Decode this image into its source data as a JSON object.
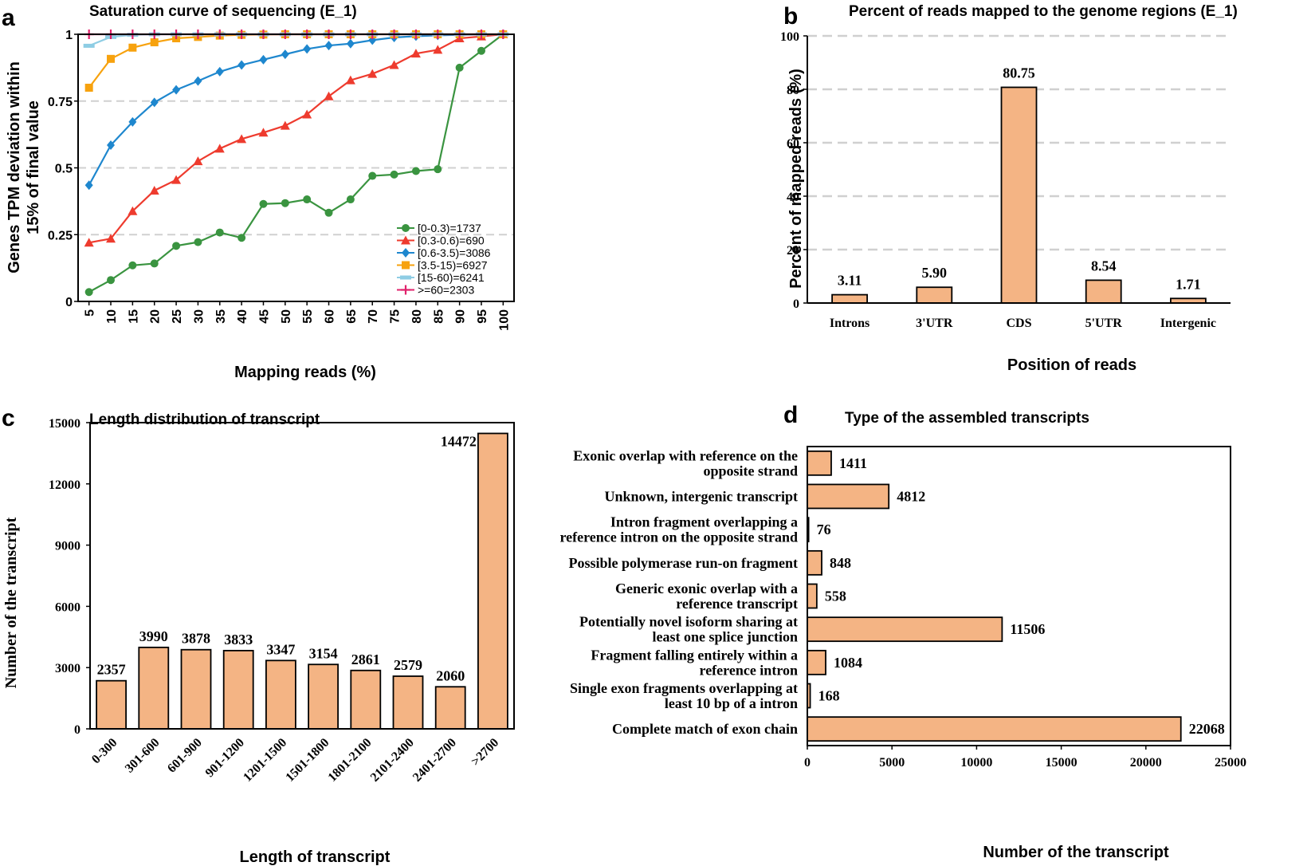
{
  "colors": {
    "bar_fill": "#F4B484",
    "grid": "#D0D0D0",
    "axis": "#000000"
  },
  "chart_data": [
    {
      "panel": "a",
      "type": "line",
      "title": "Saturation curve of sequencing (E_1)",
      "xlabel": "Mapping reads (%)",
      "ylabel": [
        "Genes TPM deviation within",
        "15% of final value"
      ],
      "x": [
        5,
        10,
        15,
        20,
        25,
        30,
        35,
        40,
        45,
        50,
        55,
        60,
        65,
        70,
        75,
        80,
        85,
        90,
        95,
        100
      ],
      "xticks": [
        "5",
        "10",
        "15",
        "20",
        "25",
        "30",
        "35",
        "40",
        "45",
        "50",
        "55",
        "60",
        "65",
        "70",
        "75",
        "80",
        "85",
        "90",
        "95",
        "100"
      ],
      "ylim": [
        0,
        1
      ],
      "yticks": [
        {
          "value": 0,
          "label": "0"
        },
        {
          "value": 0.25,
          "label": "0.25"
        },
        {
          "value": 0.5,
          "label": "0.5"
        },
        {
          "value": 0.75,
          "label": "0.75"
        },
        {
          "value": 1,
          "label": "1"
        }
      ],
      "legend_position": "bottom-right",
      "series": [
        {
          "name": "[0-0.3)=1737",
          "color": "#3A9440",
          "marker": "circle",
          "values": [
            0.035,
            0.08,
            0.135,
            0.142,
            0.208,
            0.222,
            0.258,
            0.238,
            0.365,
            0.368,
            0.382,
            0.332,
            0.382,
            0.47,
            0.475,
            0.488,
            0.495,
            0.875,
            0.938,
            1.0
          ]
        },
        {
          "name": "[0.3-0.6)=690",
          "color": "#EE3B2E",
          "marker": "triangle",
          "values": [
            0.22,
            0.235,
            0.338,
            0.415,
            0.455,
            0.525,
            0.572,
            0.608,
            0.632,
            0.658,
            0.7,
            0.768,
            0.828,
            0.852,
            0.885,
            0.928,
            0.942,
            0.985,
            0.992,
            1.0
          ]
        },
        {
          "name": "[0.6-3.5)=3086",
          "color": "#1E87CE",
          "marker": "diamond",
          "values": [
            0.435,
            0.585,
            0.672,
            0.745,
            0.792,
            0.825,
            0.86,
            0.885,
            0.905,
            0.925,
            0.945,
            0.958,
            0.965,
            0.978,
            0.988,
            0.993,
            0.996,
            0.998,
            0.999,
            1.0
          ]
        },
        {
          "name": "[3.5-15)=6927",
          "color": "#F7A20E",
          "marker": "square",
          "values": [
            0.8,
            0.908,
            0.95,
            0.97,
            0.985,
            0.99,
            0.995,
            0.998,
            0.999,
            1.0,
            1.0,
            1.0,
            1.0,
            1.0,
            1.0,
            1.0,
            1.0,
            1.0,
            1.0,
            1.0
          ]
        },
        {
          "name": "[15-60)=6241",
          "color": "#8ECDE4",
          "marker": "dash",
          "values": [
            0.957,
            0.99,
            0.998,
            1.0,
            1.0,
            1.0,
            1.0,
            1.0,
            1.0,
            1.0,
            1.0,
            1.0,
            1.0,
            1.0,
            1.0,
            1.0,
            1.0,
            1.0,
            1.0,
            1.0
          ]
        },
        {
          "name": ">=60=2303",
          "color": "#E0226B",
          "marker": "plus",
          "values": [
            1.0,
            1.0,
            1.0,
            1.0,
            1.0,
            1.0,
            1.0,
            1.0,
            1.0,
            1.0,
            1.0,
            1.0,
            1.0,
            1.0,
            1.0,
            1.0,
            1.0,
            1.0,
            1.0,
            1.0
          ]
        }
      ]
    },
    {
      "panel": "b",
      "type": "bar",
      "title": "Percent of reads mapped to the genome regions (E_1)",
      "xlabel": "Position of reads",
      "ylabel": "Percent of mapped reads (%)",
      "categories": [
        "Introns",
        "3'UTR",
        "CDS",
        "5'UTR",
        "Intergenic"
      ],
      "values": [
        3.11,
        5.9,
        80.75,
        8.54,
        1.71
      ],
      "value_labels": [
        "3.11",
        "5.90",
        "80.75",
        "8.54",
        "1.71"
      ],
      "ylim": [
        0,
        100
      ],
      "yticks": [
        {
          "value": 0,
          "label": "0"
        },
        {
          "value": 20,
          "label": "20"
        },
        {
          "value": 40,
          "label": "40"
        },
        {
          "value": 60,
          "label": "60"
        },
        {
          "value": 80,
          "label": "80"
        },
        {
          "value": 100,
          "label": "100"
        }
      ]
    },
    {
      "panel": "c",
      "type": "bar",
      "title": "Length distribution of transcript",
      "xlabel": "Length of transcript",
      "ylabel": "Number of the transcript",
      "categories": [
        "0-300",
        "301-600",
        "601-900",
        "901-1200",
        "1201-1500",
        "1501-1800",
        "1801-2100",
        "2101-2400",
        "2401-2700",
        ">2700"
      ],
      "values": [
        2357,
        3990,
        3878,
        3833,
        3347,
        3154,
        2861,
        2579,
        2060,
        14472
      ],
      "value_labels": [
        "2357",
        "3990",
        "3878",
        "3833",
        "3347",
        "3154",
        "2861",
        "2579",
        "2060",
        "14472"
      ],
      "ylim": [
        0,
        15000
      ],
      "yticks": [
        {
          "value": 0,
          "label": "0"
        },
        {
          "value": 3000,
          "label": "3000"
        },
        {
          "value": 6000,
          "label": "6000"
        },
        {
          "value": 9000,
          "label": "9000"
        },
        {
          "value": 12000,
          "label": "12000"
        },
        {
          "value": 15000,
          "label": "15000"
        }
      ]
    },
    {
      "panel": "d",
      "type": "bar",
      "orientation": "horizontal",
      "title": "Type of the assembled transcripts",
      "xlabel": "Number of the transcript",
      "ylabel": "",
      "categories": [
        [
          "Exonic overlap with reference on the",
          "opposite strand"
        ],
        [
          "Unknown, intergenic transcript"
        ],
        [
          "Intron fragment overlapping a",
          "reference intron on the opposite strand"
        ],
        [
          "Possible polymerase run-on fragment"
        ],
        [
          "Generic exonic overlap with a",
          "reference transcript"
        ],
        [
          "Potentially novel isoform sharing at",
          "least one splice junction"
        ],
        [
          "Fragment falling entirely within a",
          "reference intron"
        ],
        [
          "Single exon fragments overlapping at",
          "least 10 bp of a intron"
        ],
        [
          "Complete match of exon chain"
        ]
      ],
      "values": [
        1411,
        4812,
        76,
        848,
        558,
        11506,
        1084,
        168,
        22068
      ],
      "value_labels": [
        "1411",
        "4812",
        "76",
        "848",
        "558",
        "11506",
        "1084",
        "168",
        "22068"
      ],
      "xlim": [
        0,
        25000
      ],
      "xticks": [
        {
          "value": 0,
          "label": "0"
        },
        {
          "value": 5000,
          "label": "5000"
        },
        {
          "value": 10000,
          "label": "10000"
        },
        {
          "value": 15000,
          "label": "15000"
        },
        {
          "value": 20000,
          "label": "20000"
        },
        {
          "value": 25000,
          "label": "25000"
        }
      ]
    }
  ],
  "panels": {
    "a": {
      "letter": "a"
    },
    "b": {
      "letter": "b"
    },
    "c": {
      "letter": "c"
    },
    "d": {
      "letter": "d"
    }
  }
}
